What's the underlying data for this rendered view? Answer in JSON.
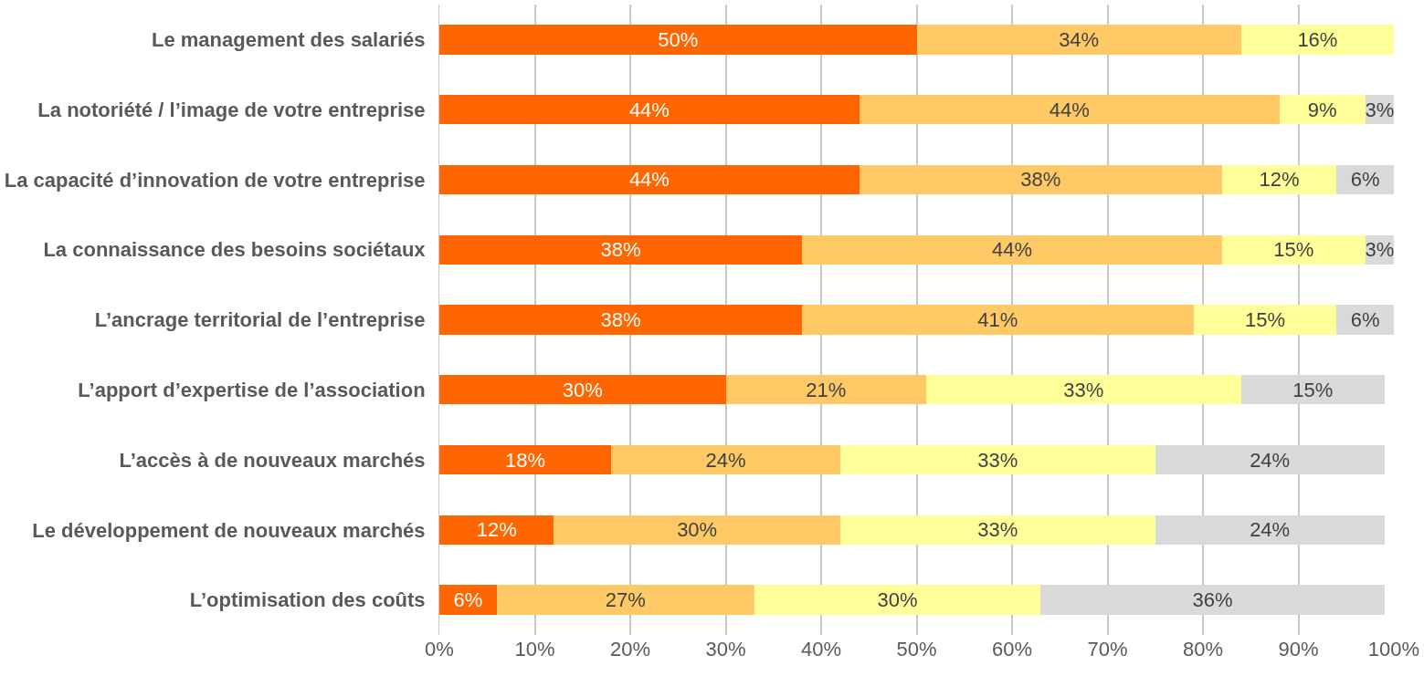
{
  "chart_data": {
    "type": "bar",
    "orientation": "horizontal",
    "stacked": true,
    "grid": "x",
    "categories": [
      "Le management des salariés",
      "La notoriété / l’image de votre entreprise",
      "La capacité d’innovation de votre entreprise",
      "La connaissance des besoins sociétaux",
      "L’ancrage territorial de l’entreprise",
      "L’apport d’expertise de l’association",
      "L’accès à de nouveaux marchés",
      "Le développement de nouveaux marchés",
      "L’optimisation des coûts"
    ],
    "series": [
      {
        "color": "#ff6600",
        "values": [
          50,
          44,
          44,
          38,
          38,
          30,
          18,
          12,
          6
        ],
        "value_labels": [
          "50%",
          "44%",
          "44%",
          "38%",
          "38%",
          "30%",
          "18%",
          "12%",
          "6%"
        ]
      },
      {
        "color": "#ffc966",
        "values": [
          34,
          44,
          38,
          44,
          41,
          21,
          24,
          30,
          27
        ],
        "value_labels": [
          "34%",
          "44%",
          "38%",
          "44%",
          "41%",
          "21%",
          "24%",
          "30%",
          "27%"
        ]
      },
      {
        "color": "#ffff99",
        "values": [
          16,
          9,
          12,
          15,
          15,
          33,
          33,
          33,
          30
        ],
        "value_labels": [
          "16%",
          "9%",
          "12%",
          "15%",
          "15%",
          "33%",
          "33%",
          "33%",
          "30%"
        ]
      },
      {
        "color": "#d9d9d9",
        "values": [
          null,
          3,
          6,
          3,
          6,
          15,
          24,
          24,
          36
        ],
        "value_labels": [
          null,
          "3%",
          "6%",
          "3%",
          "6%",
          "15%",
          "24%",
          "24%",
          "36%"
        ]
      }
    ],
    "xlim": [
      0,
      100
    ],
    "xticks": [
      {
        "value": 0,
        "label": "0%"
      },
      {
        "value": 10,
        "label": "10%"
      },
      {
        "value": 20,
        "label": "20%"
      },
      {
        "value": 30,
        "label": "30%"
      },
      {
        "value": 40,
        "label": "40%"
      },
      {
        "value": 50,
        "label": "50%"
      },
      {
        "value": 60,
        "label": "60%"
      },
      {
        "value": 70,
        "label": "70%"
      },
      {
        "value": 80,
        "label": "80%"
      },
      {
        "value": 90,
        "label": "90%"
      },
      {
        "value": 100,
        "label": "100%"
      }
    ]
  }
}
